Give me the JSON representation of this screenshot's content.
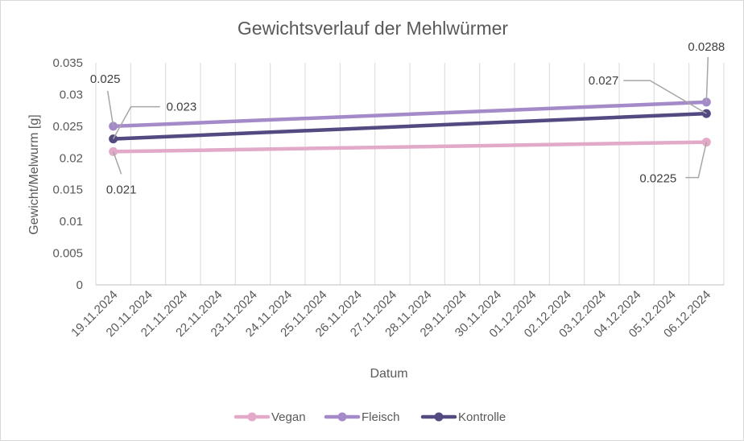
{
  "chart_data": {
    "type": "line",
    "title": "Gewichtsverlauf der Mehlwürmer",
    "xlabel": "Datum",
    "ylabel": "Gewicht/Melwurm [g]",
    "ylim": [
      0,
      0.035
    ],
    "ytick_step": 0.005,
    "yticks": [
      "0",
      "0.005",
      "0.01",
      "0.015",
      "0.02",
      "0.025",
      "0.03",
      "0.035"
    ],
    "categories": [
      "19.11.2024",
      "20.11.2024",
      "21.11.2024",
      "22.11.2024",
      "23.11.2024",
      "24.11.2024",
      "25.11.2024",
      "26.11.2024",
      "27.11.2024",
      "28.11.2024",
      "29.11.2024",
      "30.11.2024",
      "01.12.2024",
      "02.12.2024",
      "03.12.2024",
      "04.12.2024",
      "05.12.2024",
      "06.12.2024"
    ],
    "grid": {
      "vertical": true,
      "horizontal": false
    },
    "legend": "bottom",
    "series": [
      {
        "name": "Vegan",
        "color": "#e2a9c8",
        "points": [
          {
            "x": "19.11.2024",
            "y": 0.021,
            "label": "0.021"
          },
          {
            "x": "06.12.2024",
            "y": 0.0225,
            "label": "0.0225"
          }
        ]
      },
      {
        "name": "Fleisch",
        "color": "#a48ac8",
        "points": [
          {
            "x": "19.11.2024",
            "y": 0.025,
            "label": "0.025"
          },
          {
            "x": "06.12.2024",
            "y": 0.0288,
            "label": "0.0288"
          }
        ]
      },
      {
        "name": "Kontrolle",
        "color": "#534a82",
        "points": [
          {
            "x": "19.11.2024",
            "y": 0.023,
            "label": "0.023"
          },
          {
            "x": "06.12.2024",
            "y": 0.027,
            "label": "0.027"
          }
        ]
      }
    ]
  }
}
